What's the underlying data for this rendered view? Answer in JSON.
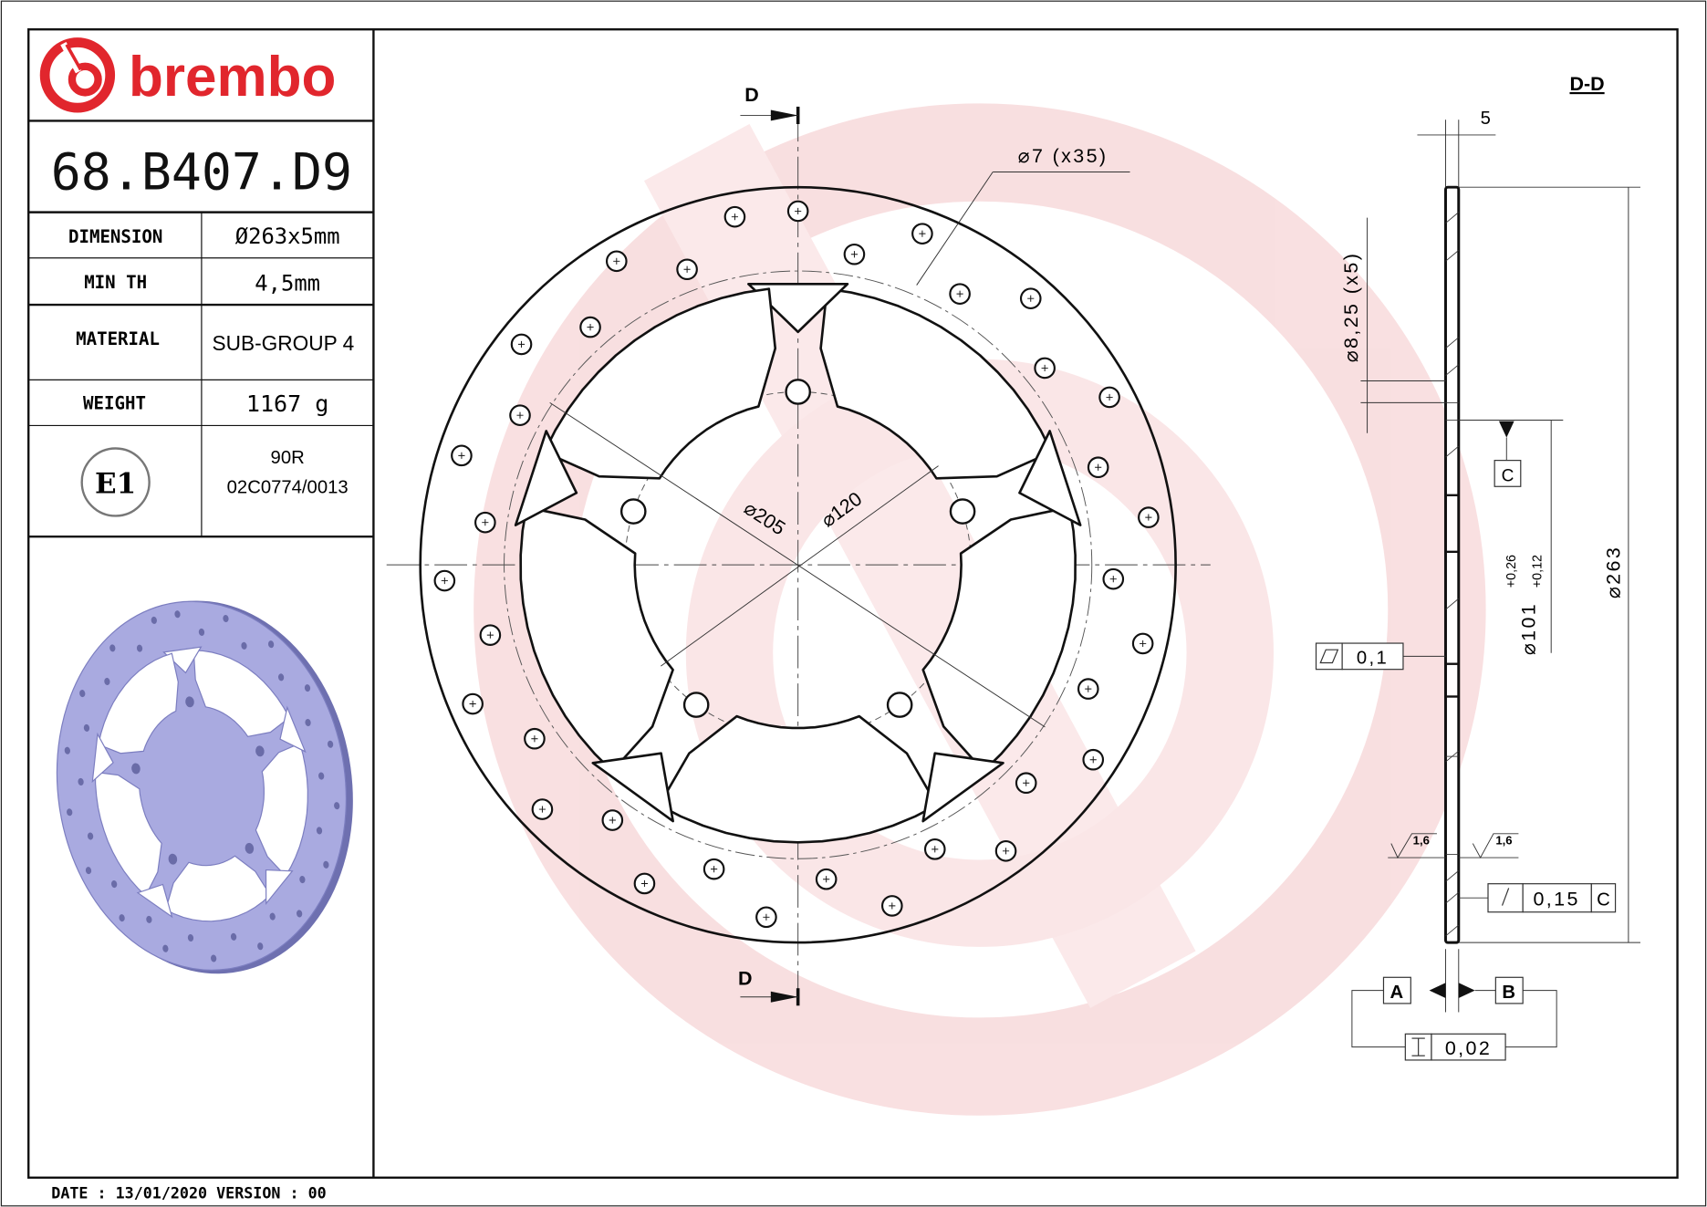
{
  "brand": {
    "logo_text": "brembo",
    "color": "#e1262d"
  },
  "title_block": {
    "part_number": "68.B407.D9",
    "rows": [
      {
        "label": "DIMENSION",
        "value": "Ø263x5mm"
      },
      {
        "label": "MIN TH",
        "value": "4,5mm"
      },
      {
        "label": "MATERIAL",
        "value": "SUB-GROUP 4"
      },
      {
        "label": "WEIGHT",
        "value": "1167 g"
      }
    ],
    "approval": {
      "mark": "E1",
      "regulation": "90R",
      "number": "02C0774/0013"
    }
  },
  "footer": {
    "text": "DATE : 13/01/2020 VERSION : 00"
  },
  "front_view": {
    "section_label_top": "D",
    "section_label_bottom": "D",
    "holes_callout": "⌀7 (x35)",
    "dia_205": "⌀205",
    "dia_120": "⌀120"
  },
  "section_view": {
    "title": "D-D",
    "thickness": "5",
    "hub_holes": "⌀8,25 (x5)",
    "datum_c": "C",
    "bore": "⌀101",
    "bore_tol_upper": "+0,26",
    "bore_tol_lower": "+0,12",
    "outer_dia": "⌀263",
    "flatness": "0,1",
    "roughness_left": "1,6",
    "roughness_right": "1,6",
    "runout": "0,15",
    "runout_datum": "C",
    "datum_a": "A",
    "datum_b": "B",
    "parallelism": "0,02"
  },
  "colors": {
    "render_fill": "#a9aae0",
    "render_edge": "#6e70b0",
    "watermark": "#f4c6c8"
  }
}
